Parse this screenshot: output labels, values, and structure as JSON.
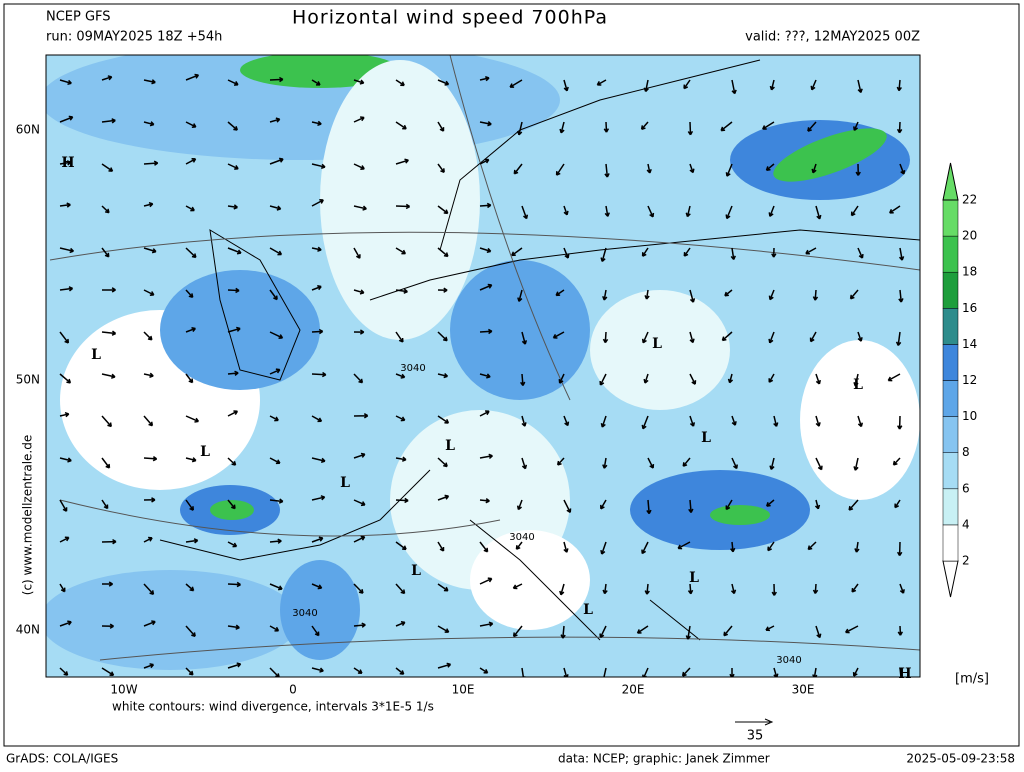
{
  "header": {
    "model": "NCEP GFS",
    "run": "run: 09MAY2025 18Z +54h",
    "title": "Horizontal wind speed 700hPa",
    "valid": "valid: ???, 12MAY2025 00Z"
  },
  "map": {
    "lat_labels": [
      "60N",
      "50N",
      "40N"
    ],
    "lon_labels": [
      "10W",
      "0",
      "10E",
      "20E",
      "30E"
    ],
    "pressure_labels": [
      "H",
      "L",
      "L",
      "L",
      "L",
      "L",
      "L",
      "L",
      "L",
      "L",
      "L",
      "H"
    ],
    "contour_labels": [
      "3040",
      "3040",
      "3040",
      "3040"
    ],
    "copyright": "(c) www.modellzentrale.de",
    "note": "white contours: wind divergence, intervals 3*1E-5 1/s",
    "arrow_scale": "35"
  },
  "colorbar": {
    "unit": "[m/s]",
    "levels": [
      2,
      4,
      6,
      8,
      10,
      12,
      14,
      16,
      18,
      20,
      22
    ],
    "colors": [
      "#ffffff",
      "#ffffff",
      "#c8f0f4",
      "#a6dcf4",
      "#86c4f0",
      "#5ea6e8",
      "#3e86dc",
      "#2e8c8c",
      "#1e9e3c",
      "#3cc24e",
      "#66dc66",
      "#66dc66"
    ]
  },
  "footer": {
    "software": "GrADS: COLA/IGES",
    "credit": "data: NCEP; graphic: Janek Zimmer",
    "timestamp": "2025-05-09-23:58"
  }
}
